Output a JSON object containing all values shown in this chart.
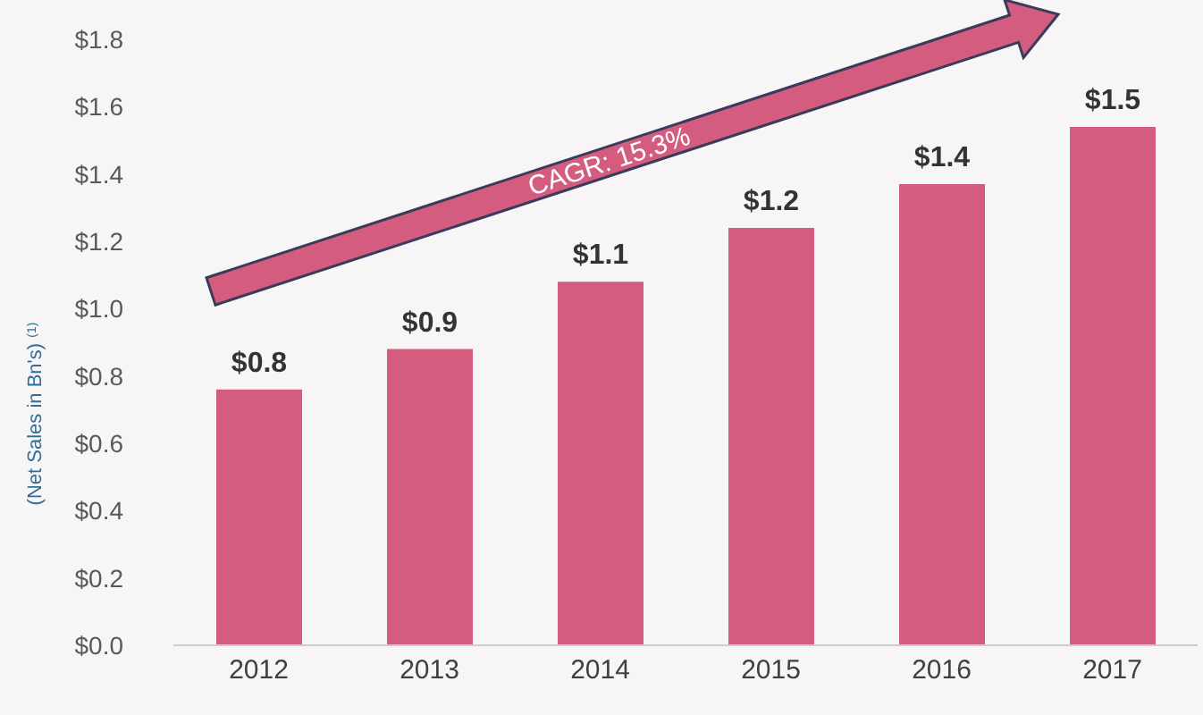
{
  "chart_data": {
    "type": "bar",
    "ylabel": "(Net Sales in Bn's) $^{(1)}$",
    "categories": [
      "2012",
      "2013",
      "2014",
      "2015",
      "2016",
      "2017"
    ],
    "values": [
      0.76,
      0.88,
      1.08,
      1.24,
      1.37,
      1.54
    ],
    "value_labels": [
      "$0.8",
      "$0.9",
      "$1.1",
      "$1.2",
      "$1.4",
      "$1.5"
    ],
    "color": "#d45d7f",
    "ylim": [
      0,
      1.8
    ],
    "yticks": [
      {
        "value": 0,
        "label": "$0.0"
      },
      {
        "value": 0.2,
        "label": "$0.2"
      },
      {
        "value": 0.4,
        "label": "$0.4"
      },
      {
        "value": 0.6,
        "label": "$0.6"
      },
      {
        "value": 0.8,
        "label": "$0.8"
      },
      {
        "value": 1.0,
        "label": "$1.0"
      },
      {
        "value": 1.2,
        "label": "$1.2"
      },
      {
        "value": 1.4,
        "label": "$1.4"
      },
      {
        "value": 1.6,
        "label": "$1.6"
      },
      {
        "value": 1.8,
        "label": "$1.8"
      }
    ],
    "annotations": [
      "CAGR: 15.3%"
    ],
    "grid": false,
    "legend": false
  }
}
